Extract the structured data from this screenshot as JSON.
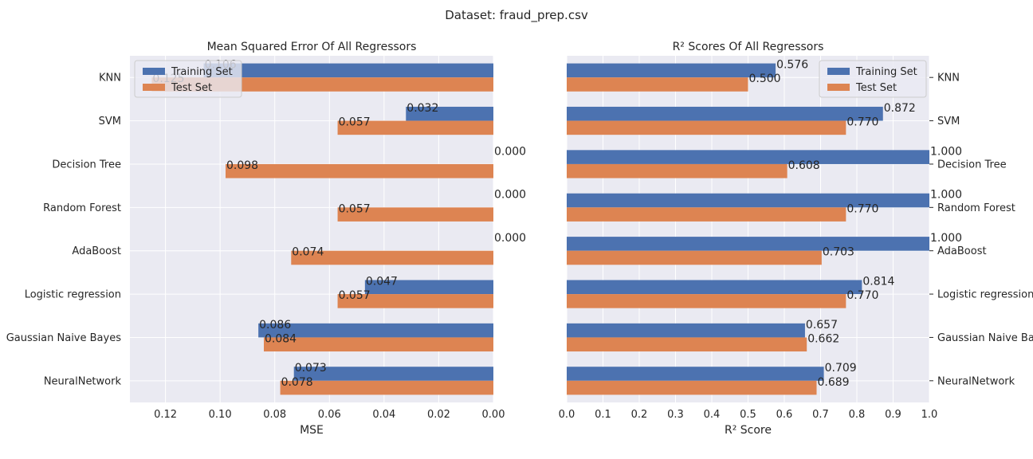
{
  "figure": {
    "suptitle": "Dataset: fraud_prep.csv"
  },
  "chart_data": [
    {
      "type": "bar",
      "orientation": "horizontal",
      "title": "Mean Squared Error Of All Regressors",
      "xlabel": "MSE",
      "ylabel": "",
      "xaxis_inverted": true,
      "xlim": [
        0.133,
        0.0
      ],
      "xticks": [
        0.12,
        0.1,
        0.08,
        0.06,
        0.04,
        0.02,
        0.0
      ],
      "xtick_labels": [
        "0.12",
        "0.10",
        "0.08",
        "0.06",
        "0.04",
        "0.02",
        "0.00"
      ],
      "category_labels_side": "left",
      "legend_position": "upper-left",
      "grid": true,
      "categories": [
        "KNN",
        "SVM",
        "Decision Tree",
        "Random Forest",
        "AdaBoost",
        "Logistic regression",
        "Gaussian Naive Bayes",
        "NeuralNetwork"
      ],
      "series": [
        {
          "name": "Training Set",
          "color": "#4c72b0",
          "values": [
            0.106,
            0.032,
            0.0,
            0.0,
            0.0,
            0.047,
            0.086,
            0.073
          ],
          "labels": [
            "0.106",
            "0.032",
            "0.000",
            "0.000",
            "0.000",
            "0.047",
            "0.086",
            "0.073"
          ]
        },
        {
          "name": "Test Set",
          "color": "#dd8452",
          "values": [
            0.125,
            0.057,
            0.098,
            0.057,
            0.074,
            0.057,
            0.084,
            0.078
          ],
          "labels": [
            "0.125",
            "0.057",
            "0.098",
            "0.057",
            "0.074",
            "0.057",
            "0.084",
            "0.078"
          ]
        }
      ]
    },
    {
      "type": "bar",
      "orientation": "horizontal",
      "title": "R² Scores Of All Regressors",
      "xlabel": "R² Score",
      "ylabel": "",
      "xlim": [
        0.0,
        1.0
      ],
      "xticks": [
        0.0,
        0.1,
        0.2,
        0.3,
        0.4,
        0.5,
        0.6,
        0.7,
        0.8,
        0.9,
        1.0
      ],
      "xtick_labels": [
        "0.0",
        "0.1",
        "0.2",
        "0.3",
        "0.4",
        "0.5",
        "0.6",
        "0.7",
        "0.8",
        "0.9",
        "1.0"
      ],
      "category_labels_side": "right",
      "legend_position": "upper-right",
      "grid": true,
      "categories": [
        "KNN",
        "SVM",
        "Decision Tree",
        "Random Forest",
        "AdaBoost",
        "Logistic regression",
        "Gaussian Naive Bayes",
        "NeuralNetwork"
      ],
      "series": [
        {
          "name": "Training Set",
          "color": "#4c72b0",
          "values": [
            0.576,
            0.872,
            1.0,
            1.0,
            1.0,
            0.814,
            0.657,
            0.709
          ],
          "labels": [
            "0.576",
            "0.872",
            "1.000",
            "1.000",
            "1.000",
            "0.814",
            "0.657",
            "0.709"
          ]
        },
        {
          "name": "Test Set",
          "color": "#dd8452",
          "values": [
            0.5,
            0.77,
            0.608,
            0.77,
            0.703,
            0.77,
            0.662,
            0.689
          ],
          "labels": [
            "0.500",
            "0.770",
            "0.608",
            "0.770",
            "0.703",
            "0.770",
            "0.662",
            "0.689"
          ]
        }
      ]
    }
  ],
  "style": {
    "plot_background": "#eaeaf2",
    "grid_color": "#ffffff",
    "text_color": "#262626"
  }
}
